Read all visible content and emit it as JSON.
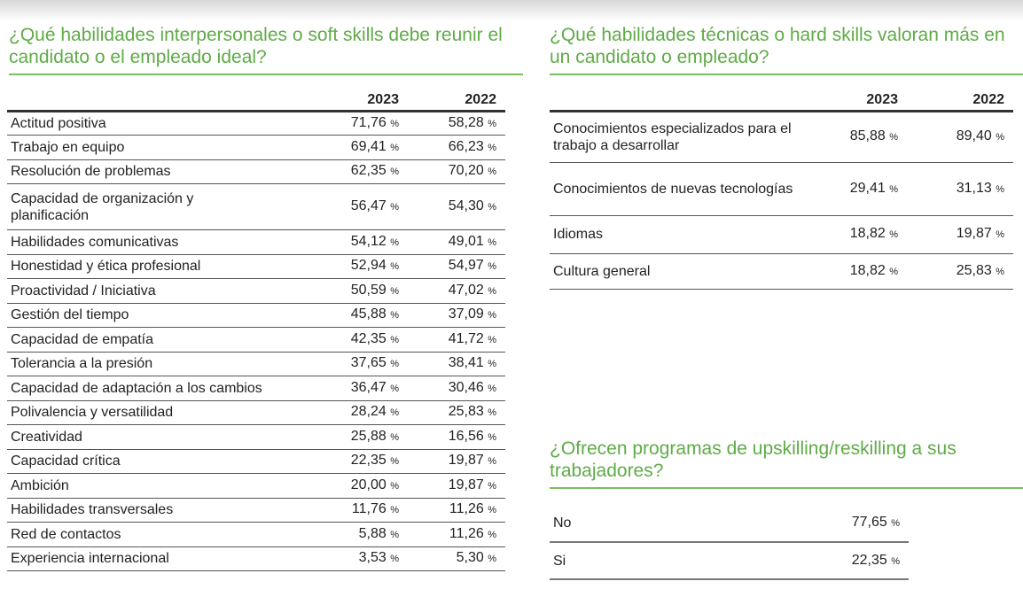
{
  "soft_skills": {
    "title": "¿Qué habilidades interpersonales o soft skills debe reunir el candidato o el empleado ideal?",
    "columns": [
      "2023",
      "2022"
    ],
    "rows": [
      {
        "label": "Actitud positiva",
        "v2023": "71,76",
        "v2022": "58,28"
      },
      {
        "label": "Trabajo en equipo",
        "v2023": "69,41",
        "v2022": "66,23"
      },
      {
        "label": "Resolución de problemas",
        "v2023": "62,35",
        "v2022": "70,20"
      },
      {
        "label": "Capacidad de organización y planificación",
        "v2023": "56,47",
        "v2022": "54,30"
      },
      {
        "label": "Habilidades comunicativas",
        "v2023": "54,12",
        "v2022": "49,01"
      },
      {
        "label": "Honestidad y ética profesional",
        "v2023": "52,94",
        "v2022": "54,97"
      },
      {
        "label": "Proactividad / Iniciativa",
        "v2023": "50,59",
        "v2022": "47,02"
      },
      {
        "label": "Gestión del tiempo",
        "v2023": "45,88",
        "v2022": "37,09"
      },
      {
        "label": "Capacidad de empatía",
        "v2023": "42,35",
        "v2022": "41,72"
      },
      {
        "label": "Tolerancia a la presión",
        "v2023": "37,65",
        "v2022": "38,41"
      },
      {
        "label": "Capacidad de adaptación a los cambios",
        "v2023": "36,47",
        "v2022": "30,46"
      },
      {
        "label": "Polivalencia y versatilidad",
        "v2023": "28,24",
        "v2022": "25,83"
      },
      {
        "label": "Creatividad",
        "v2023": "25,88",
        "v2022": "16,56"
      },
      {
        "label": "Capacidad crítica",
        "v2023": "22,35",
        "v2022": "19,87"
      },
      {
        "label": "Ambición",
        "v2023": "20,00",
        "v2022": "19,87"
      },
      {
        "label": "Habilidades transversales",
        "v2023": "11,76",
        "v2022": "11,26"
      },
      {
        "label": "Red de contactos",
        "v2023": "5,88",
        "v2022": "11,26"
      },
      {
        "label": "Experiencia internacional",
        "v2023": "3,53",
        "v2022": "5,30"
      }
    ]
  },
  "hard_skills": {
    "title": "¿Qué habilidades técnicas o hard skills valoran más en un candidato o empleado?",
    "columns": [
      "2023",
      "2022"
    ],
    "rows": [
      {
        "label": "Conocimientos especializados para el trabajo a desarrollar",
        "v2023": "85,88",
        "v2022": "89,40"
      },
      {
        "label": "Conocimientos de nuevas tecnologías",
        "v2023": "29,41",
        "v2022": "31,13"
      },
      {
        "label": "Idiomas",
        "v2023": "18,82",
        "v2022": "19,87"
      },
      {
        "label": "Cultura general",
        "v2023": "18,82",
        "v2022": "25,83"
      }
    ]
  },
  "upskilling": {
    "title": "¿Ofrecen programas de upskilling/reskilling a sus trabajadores?",
    "rows": [
      {
        "label": "No",
        "value": "77,65"
      },
      {
        "label": "Si",
        "value": "22,35"
      }
    ]
  },
  "percent_sign": "%",
  "accent_color": "#5fab47"
}
